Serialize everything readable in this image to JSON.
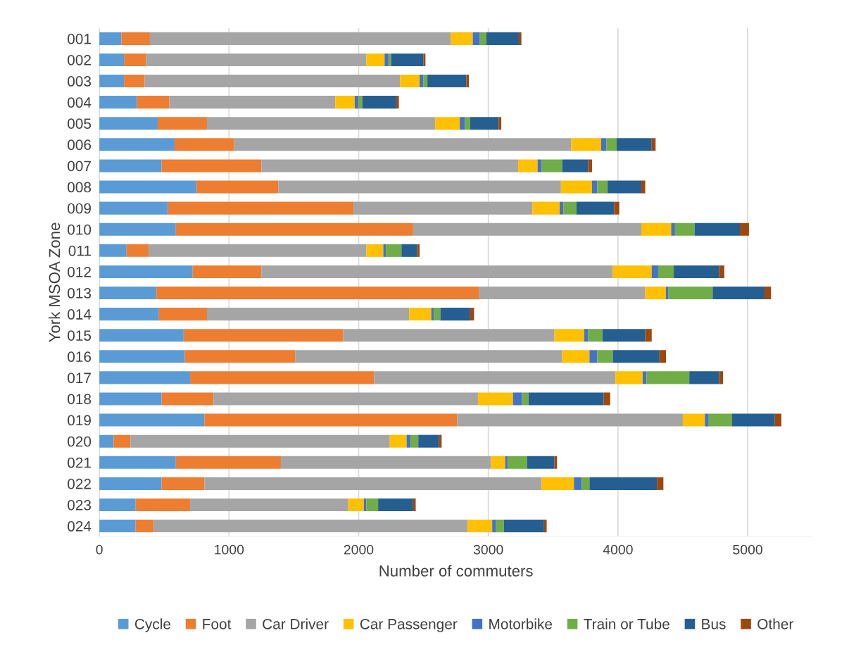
{
  "chart_data": {
    "type": "bar",
    "orientation": "horizontal",
    "stacked": true,
    "xlabel": "Number of commuters",
    "ylabel": "York MSOA Zone",
    "categories": [
      "001",
      "002",
      "003",
      "004",
      "005",
      "006",
      "007",
      "008",
      "009",
      "010",
      "011",
      "012",
      "013",
      "014",
      "015",
      "016",
      "017",
      "018",
      "019",
      "020",
      "021",
      "022",
      "023",
      "024"
    ],
    "series": [
      {
        "name": "Cycle",
        "color": "#5b9bd5",
        "values": [
          170,
          190,
          190,
          290,
          450,
          580,
          480,
          750,
          530,
          590,
          210,
          720,
          440,
          460,
          650,
          660,
          700,
          480,
          810,
          110,
          590,
          480,
          280,
          280
        ]
      },
      {
        "name": "Foot",
        "color": "#ed7d31",
        "values": [
          220,
          170,
          160,
          250,
          380,
          460,
          770,
          630,
          1430,
          1830,
          170,
          530,
          2490,
          370,
          1230,
          850,
          1420,
          400,
          1950,
          130,
          810,
          330,
          420,
          140
        ]
      },
      {
        "name": "Car Driver",
        "color": "#a5a5a5",
        "values": [
          2320,
          1700,
          1970,
          1280,
          1760,
          2600,
          1980,
          2180,
          1380,
          1760,
          1680,
          2710,
          1280,
          1560,
          1630,
          2060,
          1860,
          2040,
          1740,
          2000,
          1620,
          2600,
          1220,
          2420
        ]
      },
      {
        "name": "Car Passenger",
        "color": "#ffc000",
        "values": [
          170,
          140,
          150,
          150,
          190,
          230,
          150,
          240,
          210,
          230,
          130,
          300,
          160,
          170,
          230,
          210,
          210,
          270,
          170,
          130,
          110,
          250,
          120,
          190
        ]
      },
      {
        "name": "Motorbike",
        "color": "#4472c4",
        "values": [
          55,
          30,
          30,
          30,
          40,
          40,
          30,
          40,
          30,
          30,
          20,
          50,
          20,
          20,
          30,
          60,
          30,
          70,
          30,
          30,
          20,
          60,
          20,
          30
        ]
      },
      {
        "name": "Train or Tube",
        "color": "#70ad47",
        "values": [
          50,
          20,
          30,
          30,
          40,
          80,
          160,
          80,
          100,
          150,
          120,
          120,
          340,
          50,
          110,
          120,
          330,
          50,
          180,
          60,
          150,
          60,
          90,
          60
        ]
      },
      {
        "name": "Bus",
        "color": "#255e91",
        "values": [
          250,
          250,
          300,
          260,
          220,
          270,
          200,
          260,
          290,
          350,
          120,
          350,
          400,
          230,
          330,
          360,
          230,
          580,
          330,
          160,
          210,
          520,
          270,
          310
        ]
      },
      {
        "name": "Other",
        "color": "#9e480e",
        "values": [
          20,
          15,
          20,
          20,
          20,
          30,
          30,
          30,
          40,
          70,
          20,
          40,
          50,
          30,
          50,
          50,
          30,
          50,
          50,
          20,
          20,
          50,
          20,
          20
        ]
      }
    ],
    "xlim": [
      0,
      5500
    ],
    "xticks": [
      0,
      1000,
      2000,
      3000,
      4000,
      5000
    ],
    "grid": "x",
    "legend": "bottom"
  }
}
